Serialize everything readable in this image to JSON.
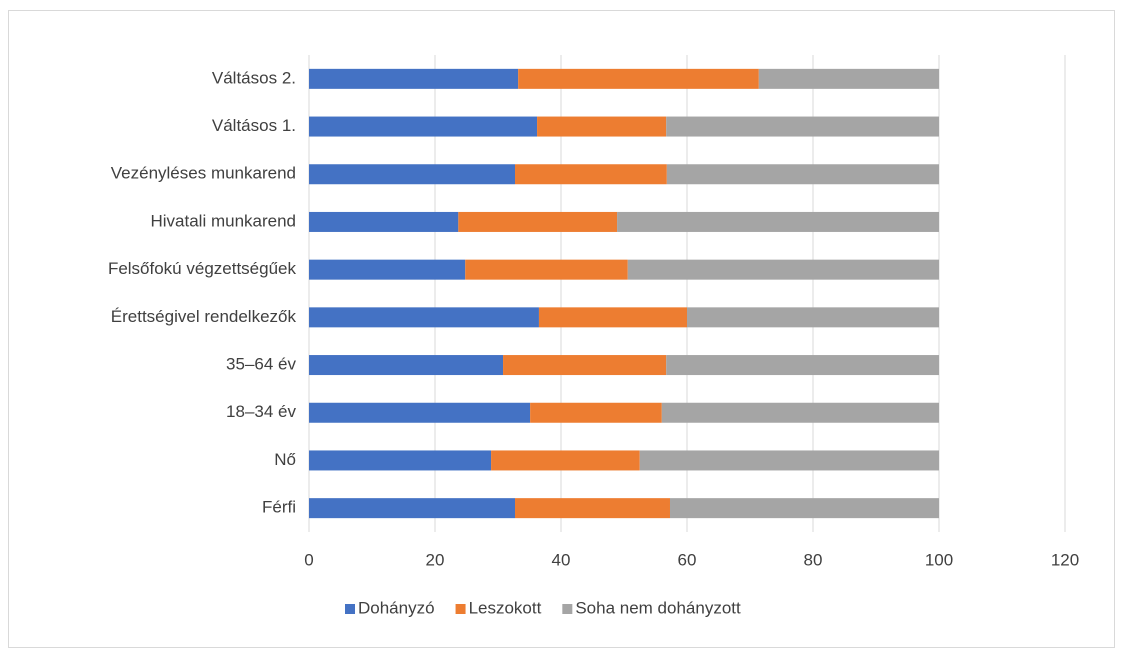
{
  "chart_data": {
    "type": "bar",
    "orientation": "horizontal",
    "stacked": true,
    "categories": [
      "Férfi",
      "Nő",
      "18–34 év",
      "35–64 év",
      "Érettségivel rendelkezők",
      "Felsőfokú végzettségűek",
      "Hivatali munkarend",
      "Vezényléses munkarend",
      "Váltásos 1.",
      "Váltásos 2."
    ],
    "series": [
      {
        "name": "Dohányzó",
        "color": "#4472c4",
        "values": [
          32.7,
          28.9,
          35.1,
          30.8,
          36.5,
          24.8,
          23.7,
          32.7,
          36.2,
          33.2
        ]
      },
      {
        "name": "Leszokott",
        "color": "#ed7d31",
        "values": [
          24.6,
          23.6,
          20.9,
          25.9,
          23.5,
          25.8,
          25.2,
          24.1,
          20.5,
          38.2
        ]
      },
      {
        "name": "Soha nem dohányzott",
        "color": "#a5a5a5",
        "values": [
          42.7,
          47.5,
          44.0,
          43.3,
          40.0,
          49.4,
          51.1,
          43.2,
          43.3,
          28.6
        ]
      }
    ],
    "xlim": [
      0,
      120
    ],
    "xticks": [
      0,
      20,
      40,
      60,
      80,
      100,
      120
    ],
    "grid": true,
    "legend": "bottom"
  }
}
